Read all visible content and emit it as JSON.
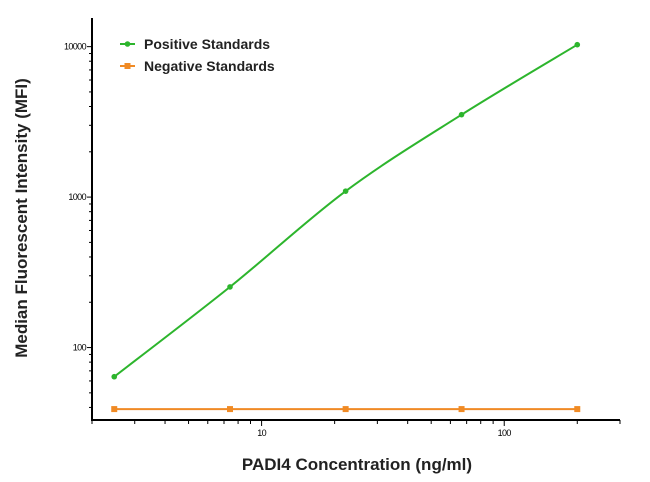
{
  "chart_data": {
    "type": "line",
    "title": "",
    "xlabel": "PADI4 Concentration (ng/ml)",
    "ylabel": "Median Fluorescent Intensity (MFI)",
    "xscale": "log",
    "yscale": "log",
    "xlim": [
      2,
      300
    ],
    "ylim": [
      33,
      15500
    ],
    "x_ticks": [
      10,
      100
    ],
    "x_tick_labels": [
      "10",
      "100"
    ],
    "y_ticks": [
      100,
      1000,
      10000
    ],
    "y_tick_labels": [
      "100",
      "1000",
      "10000"
    ],
    "grid": false,
    "legend_position": "top-left",
    "series": [
      {
        "name": "Positive Standards",
        "color": "#2db52d",
        "marker": "circle",
        "x": [
          2.47,
          7.41,
          22.2,
          66.7,
          200
        ],
        "y": [
          64,
          253,
          1095,
          3530,
          10300
        ]
      },
      {
        "name": "Negative Standards",
        "color": "#f08a24",
        "marker": "square",
        "x": [
          2.47,
          7.41,
          22.2,
          66.7,
          200
        ],
        "y": [
          39,
          39,
          39,
          39,
          39
        ]
      }
    ]
  }
}
